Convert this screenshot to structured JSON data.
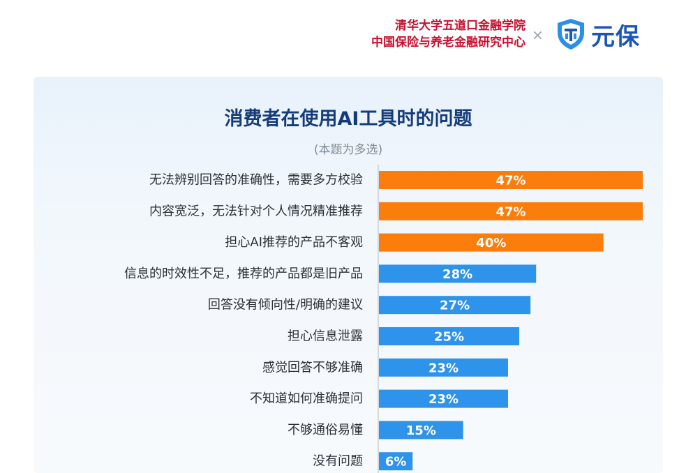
{
  "header": {
    "institution_line1": "清华大学五道口金融学院",
    "institution_line2": "中国保险与养老金融研究中心",
    "separator": "×",
    "brand_name": "元保"
  },
  "colors": {
    "highlight_bar": "#fb7d0b",
    "normal_bar": "#2e93ea",
    "title": "#163b7a",
    "institution_text": "#c8102e",
    "brand": "#1a56b8"
  },
  "chart_data": {
    "type": "bar",
    "orientation": "horizontal",
    "title": "消费者在使用AI工具时的问题",
    "subtitle": "(本题为多选)",
    "categories": [
      "无法辨别回答的准确性，需要多方校验",
      "内容宽泛，无法针对个人情况精准推荐",
      "担心AI推荐的产品不客观",
      "信息的时效性不足，推荐的产品都是旧产品",
      "回答没有倾向性/明确的建议",
      "担心信息泄露",
      "感觉回答不够准确",
      "不知道如何准确提问",
      "不够通俗易懂",
      "没有问题"
    ],
    "values": [
      47,
      47,
      40,
      28,
      27,
      25,
      23,
      23,
      15,
      6
    ],
    "value_labels": [
      "47%",
      "47%",
      "40%",
      "28%",
      "27%",
      "25%",
      "23%",
      "23%",
      "15%",
      "6%"
    ],
    "highlighted": [
      true,
      true,
      true,
      false,
      false,
      false,
      false,
      false,
      false,
      false
    ],
    "unit": "%",
    "xlim": [
      0,
      47
    ],
    "grid": false,
    "legend": "none"
  }
}
